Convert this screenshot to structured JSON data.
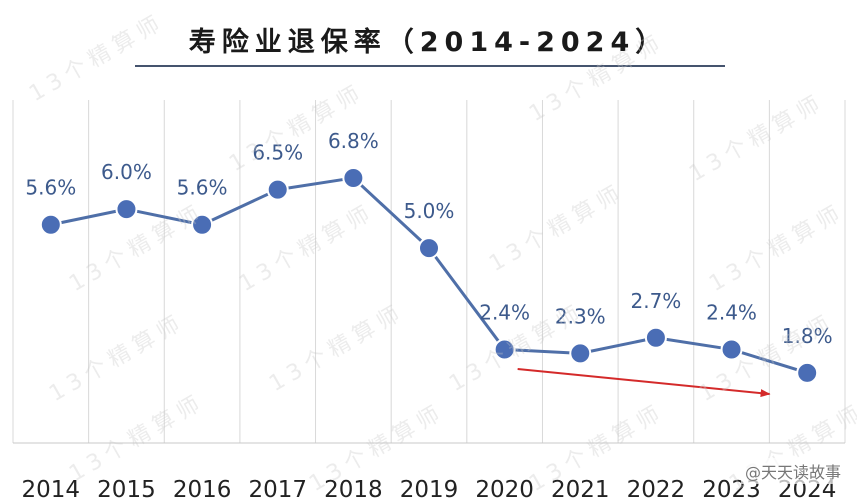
{
  "chart_data": {
    "type": "line",
    "title": "寿险业退保率（2014-2024）",
    "categories": [
      "2014",
      "2015",
      "2016",
      "2017",
      "2018",
      "2019",
      "2020",
      "2021",
      "2022",
      "2023",
      "2024"
    ],
    "series": [
      {
        "values": [
          5.6,
          6.0,
          5.6,
          6.5,
          6.8,
          5.0,
          2.4,
          2.3,
          2.7,
          2.4,
          1.8
        ]
      }
    ],
    "data_labels": [
      "5.6%",
      "6.0%",
      "5.6%",
      "6.5%",
      "6.8%",
      "5.0%",
      "2.4%",
      "2.3%",
      "2.7%",
      "2.4%",
      "1.8%"
    ],
    "ylim": [
      0,
      8.8
    ],
    "grid": "vertical",
    "annotation": {
      "type": "trend-arrow",
      "from": "2020",
      "to": "2023",
      "color": "#d42a2a"
    },
    "colors": {
      "line": "#4f6fa8",
      "marker": "#4a6db5",
      "label": "#3d5a8c",
      "grid": "#d8d8d8"
    }
  },
  "watermark_text": "13个精算师",
  "source_tag": "@天天读故事"
}
